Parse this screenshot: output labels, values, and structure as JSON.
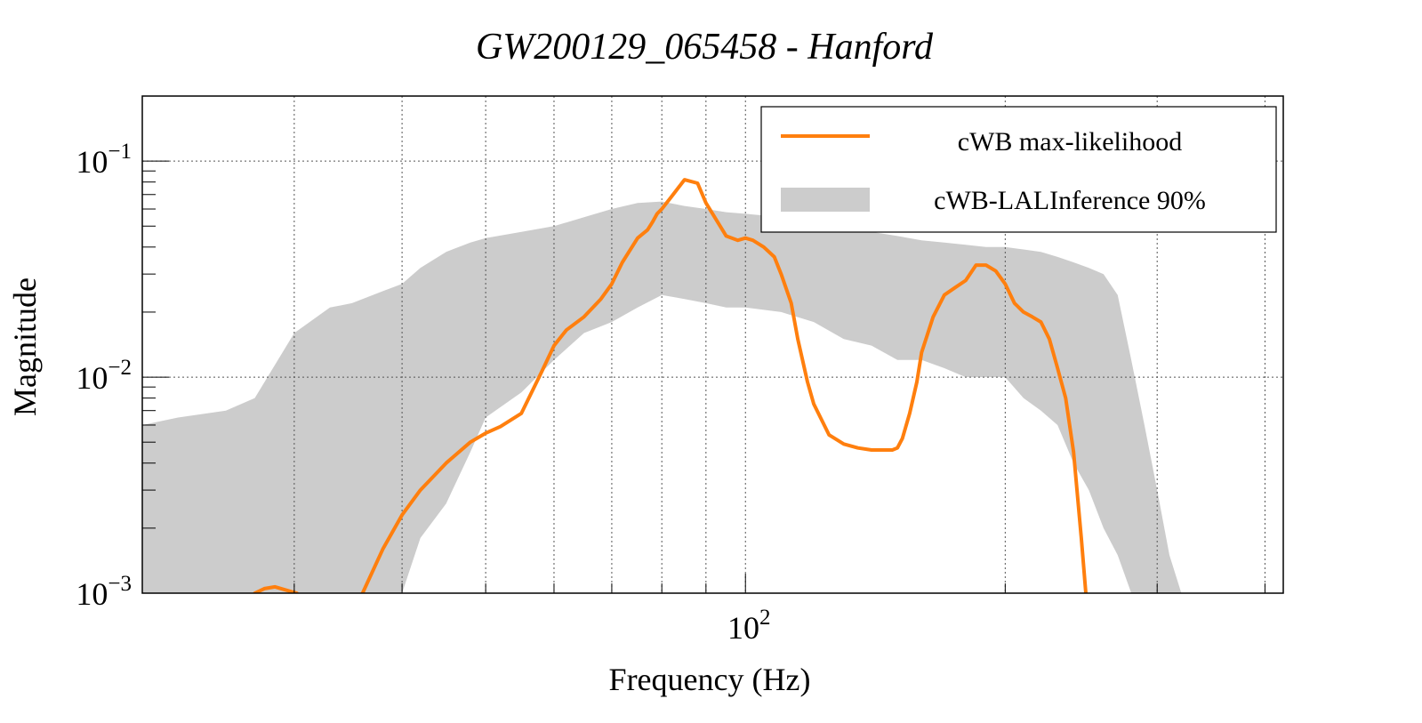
{
  "chart_data": {
    "type": "line",
    "title": "GW200129_065458 - Hanford",
    "xlabel": "Frequency (Hz)",
    "ylabel": "Magnitude",
    "x_scale": "log",
    "y_scale": "log",
    "xlim": [
      20,
      420
    ],
    "ylim": [
      0.001,
      0.2
    ],
    "grid": true,
    "x_tick_labels": [
      {
        "value": 100,
        "base": "10",
        "exp": "2"
      }
    ],
    "y_tick_labels": [
      {
        "value": 0.1,
        "base": "10",
        "exp": "−1"
      },
      {
        "value": 0.01,
        "base": "10",
        "exp": "−2"
      },
      {
        "value": 0.001,
        "base": "10",
        "exp": "−3"
      }
    ],
    "x_grid_values": [
      30,
      40,
      50,
      60,
      70,
      80,
      90,
      100,
      200,
      300,
      400
    ],
    "y_grid_values": [
      0.01,
      0.1
    ],
    "legend": {
      "placement": "top-right",
      "entries": [
        {
          "label": "cWB max-likelihood",
          "kind": "line",
          "color": "#ff7f0e"
        },
        {
          "label": "cWB-LALInference 90%",
          "kind": "band",
          "color": "#cccccc"
        }
      ]
    },
    "series": [
      {
        "name": "cWB-LALInference 90%",
        "kind": "band",
        "color": "#cccccc",
        "x": [
          20,
          22,
          25,
          27,
          30,
          33,
          35,
          38,
          40,
          42,
          45,
          48,
          50,
          55,
          60,
          65,
          70,
          75,
          80,
          85,
          90,
          95,
          100,
          110,
          120,
          130,
          140,
          150,
          160,
          170,
          180,
          190,
          200,
          210,
          220,
          230,
          240,
          250,
          260,
          270,
          280,
          290,
          300,
          310,
          320,
          330,
          340
        ],
        "upper": [
          0.006,
          0.0065,
          0.007,
          0.008,
          0.016,
          0.021,
          0.022,
          0.025,
          0.027,
          0.032,
          0.038,
          0.042,
          0.044,
          0.047,
          0.05,
          0.055,
          0.06,
          0.064,
          0.065,
          0.062,
          0.06,
          0.058,
          0.057,
          0.055,
          0.052,
          0.05,
          0.047,
          0.045,
          0.043,
          0.042,
          0.041,
          0.04,
          0.04,
          0.039,
          0.038,
          0.036,
          0.034,
          0.032,
          0.03,
          0.024,
          0.012,
          0.006,
          0.003,
          0.0015,
          0.001,
          0.001,
          0.001
        ],
        "lower": [
          0.001,
          0.001,
          0.001,
          0.001,
          0.001,
          0.001,
          0.001,
          0.001,
          0.001,
          0.0018,
          0.0026,
          0.0045,
          0.0065,
          0.0085,
          0.012,
          0.016,
          0.018,
          0.021,
          0.024,
          0.023,
          0.022,
          0.021,
          0.021,
          0.02,
          0.018,
          0.015,
          0.014,
          0.012,
          0.012,
          0.011,
          0.01,
          0.01,
          0.01,
          0.008,
          0.007,
          0.006,
          0.004,
          0.003,
          0.002,
          0.0015,
          0.001,
          0.001,
          0.001,
          0.001,
          0.001,
          0.001,
          0.001
        ]
      },
      {
        "name": "cWB max-likelihood",
        "kind": "line",
        "color": "#ff7f0e",
        "segments": [
          {
            "x": [
              27.0,
              27.7,
              28.5,
              29.2,
              30.2
            ],
            "y": [
              0.001,
              0.00105,
              0.00107,
              0.00104,
              0.001
            ]
          },
          {
            "x": [
              36.0,
              38,
              40,
              42,
              45,
              48,
              50,
              52,
              55,
              58,
              60,
              62,
              65,
              68,
              70,
              72,
              75,
              77,
              78,
              79,
              80,
              82,
              85,
              88,
              90,
              95,
              98,
              100,
              102,
              105,
              108,
              110,
              113,
              115,
              118,
              120,
              125,
              130,
              135,
              140,
              145,
              148,
              150,
              152,
              155,
              158,
              160,
              165,
              170,
              175,
              180,
              185,
              190,
              195,
              200,
              205,
              210,
              215,
              220,
              225,
              230,
              235,
              240,
              245,
              248
            ],
            "y": [
              0.001,
              0.0016,
              0.0023,
              0.003,
              0.004,
              0.005,
              0.0055,
              0.0059,
              0.0068,
              0.0105,
              0.014,
              0.0165,
              0.019,
              0.023,
              0.027,
              0.034,
              0.044,
              0.048,
              0.052,
              0.057,
              0.06,
              0.068,
              0.082,
              0.079,
              0.064,
              0.045,
              0.043,
              0.044,
              0.043,
              0.04,
              0.036,
              0.03,
              0.022,
              0.015,
              0.0095,
              0.0075,
              0.0054,
              0.0049,
              0.0047,
              0.0046,
              0.0046,
              0.0046,
              0.0047,
              0.0052,
              0.0068,
              0.0095,
              0.013,
              0.019,
              0.024,
              0.026,
              0.028,
              0.033,
              0.033,
              0.031,
              0.027,
              0.022,
              0.02,
              0.019,
              0.018,
              0.015,
              0.011,
              0.008,
              0.0045,
              0.0018,
              0.001
            ]
          }
        ]
      }
    ]
  }
}
